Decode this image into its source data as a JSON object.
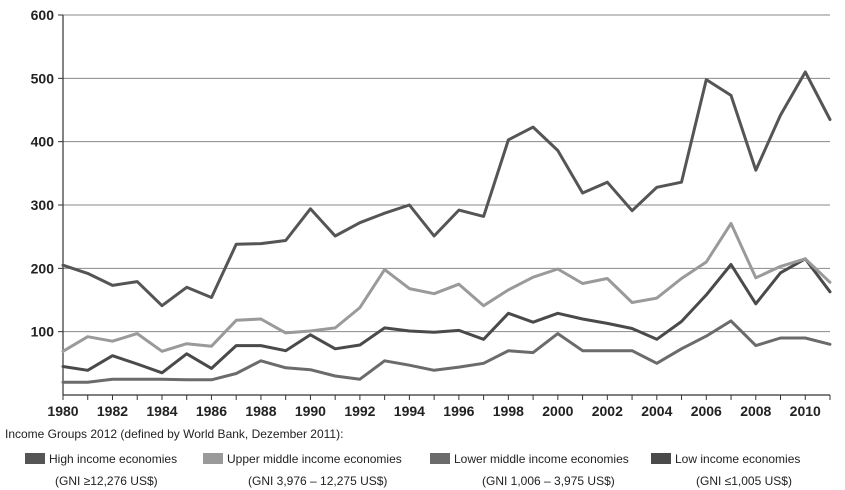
{
  "chart_data": {
    "type": "line",
    "title": "",
    "xlabel": "",
    "ylabel": "",
    "x": [
      1980,
      1981,
      1982,
      1983,
      1984,
      1985,
      1986,
      1987,
      1988,
      1989,
      1990,
      1991,
      1992,
      1993,
      1994,
      1995,
      1996,
      1997,
      1998,
      1999,
      2000,
      2001,
      2002,
      2003,
      2004,
      2005,
      2006,
      2007,
      2008,
      2009,
      2010,
      2011
    ],
    "xticks": [
      "1980",
      "1982",
      "1984",
      "1986",
      "1988",
      "1990",
      "1992",
      "1994",
      "1996",
      "1998",
      "2000",
      "2002",
      "2004",
      "2006",
      "2008",
      "2010"
    ],
    "yticks": [
      "100",
      "200",
      "300",
      "400",
      "500",
      "600"
    ],
    "xlim": [
      1980,
      2011
    ],
    "ylim": [
      0,
      600
    ],
    "grid": true,
    "series": [
      {
        "name": "High income economies",
        "sub": "(GNI ≥12,276 US$)",
        "color": "#555555",
        "values": [
          205,
          192,
          173,
          179,
          141,
          170,
          154,
          238,
          239,
          244,
          294,
          251,
          272,
          287,
          300,
          251,
          292,
          282,
          403,
          423,
          386,
          319,
          336,
          291,
          328,
          336,
          498,
          473,
          355,
          442,
          510,
          435
        ]
      },
      {
        "name": "Upper middle income economies",
        "sub": "(GNI 3,976 – 12,275 US$)",
        "color": "#9a9a9a",
        "values": [
          69,
          92,
          85,
          97,
          69,
          81,
          77,
          118,
          120,
          98,
          101,
          106,
          138,
          198,
          168,
          160,
          175,
          141,
          166,
          186,
          199,
          176,
          184,
          146,
          153,
          184,
          210,
          271,
          185,
          203,
          215,
          178
        ]
      },
      {
        "name": "Lower middle income economies",
        "sub": "(GNI 1,006 – 3,975 US$)",
        "color": "#6b6b6b",
        "values": [
          20,
          20,
          25,
          25,
          25,
          24,
          24,
          34,
          54,
          43,
          40,
          30,
          25,
          54,
          47,
          39,
          44,
          50,
          70,
          67,
          97,
          70,
          70,
          70,
          50,
          73,
          93,
          117,
          78,
          90,
          90,
          80
        ]
      },
      {
        "name": "Low  income economies",
        "sub": "(GNI  ≤1,005 US$)",
        "color": "#4a4a4a",
        "values": [
          45,
          39,
          62,
          49,
          35,
          65,
          42,
          78,
          78,
          70,
          95,
          73,
          79,
          106,
          101,
          99,
          102,
          88,
          129,
          115,
          129,
          120,
          113,
          105,
          88,
          116,
          158,
          206,
          144,
          193,
          215,
          163
        ]
      }
    ],
    "legend_intro": "Income Groups 2012 (defined by World Bank, Dezember 2011):",
    "legend_position": "bottom"
  }
}
